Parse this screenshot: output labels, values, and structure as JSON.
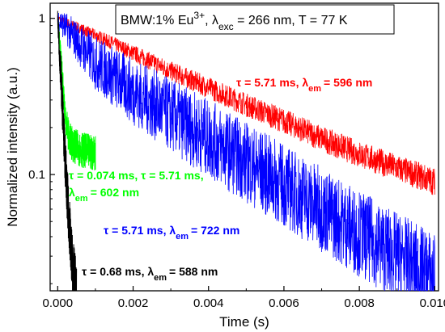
{
  "chart_data": {
    "type": "line",
    "title": "",
    "xlabel": "Time (s)",
    "ylabel": "Normalized intensity (a.u.)",
    "xlim": [
      -0.0002,
      0.0101
    ],
    "ylim": [
      0.018,
      1.25
    ],
    "yscale": "log",
    "grid": false,
    "x_ticks": [
      {
        "value": 0.0,
        "label": "0.000"
      },
      {
        "value": 0.002,
        "label": "0.002"
      },
      {
        "value": 0.004,
        "label": "0.004"
      },
      {
        "value": 0.006,
        "label": "0.006"
      },
      {
        "value": 0.008,
        "label": "0.008"
      },
      {
        "value": 0.01,
        "label": "0.010"
      }
    ],
    "y_ticks": [
      {
        "value": 1,
        "label": "1"
      },
      {
        "value": 0.1,
        "label": "0.1"
      }
    ],
    "legend": {
      "placement": "top-right",
      "prefix": "BMW:1% Eu",
      "superscript": "3+",
      "mid": ", λ",
      "subscript": "exc",
      "suffix": " = 266 nm, T = 77 K"
    },
    "series": [
      {
        "color": "#ff0000",
        "x": [
          0.0,
          0.001,
          0.002,
          0.003,
          0.004,
          0.005,
          0.006,
          0.007,
          0.008,
          0.009,
          0.01
        ],
        "y": [
          1.0,
          0.78,
          0.6,
          0.46,
          0.36,
          0.28,
          0.22,
          0.17,
          0.135,
          0.11,
          0.09
        ],
        "noise": 0.06,
        "annotation": {
          "tau": "τ = 5.71 ms, λ",
          "sub": "em",
          "rest": "= 596 nm"
        }
      },
      {
        "color": "#0000ff",
        "x": [
          0.0,
          0.001,
          0.002,
          0.003,
          0.004,
          0.005,
          0.006,
          0.007,
          0.008,
          0.009,
          0.01
        ],
        "y": [
          1.0,
          0.52,
          0.34,
          0.24,
          0.17,
          0.12,
          0.085,
          0.06,
          0.042,
          0.03,
          0.022
        ],
        "noise": 0.18,
        "annotation": {
          "tau": "τ = 5.71 ms, λ",
          "sub": "em",
          "rest": "= 722 nm"
        }
      },
      {
        "color": "#00ff00",
        "x": [
          0.0,
          0.0001,
          0.0002,
          0.0003,
          0.0004,
          0.0006,
          0.0008,
          0.001
        ],
        "y": [
          1.0,
          0.5,
          0.24,
          0.17,
          0.155,
          0.145,
          0.14,
          0.138
        ],
        "noise": 0.08,
        "annotation": {
          "tau": "τ = 0.074 ms, τ = 5.71 ms,",
          "line2": "λ",
          "sub": "em",
          "rest": "= 602 nm"
        }
      },
      {
        "color": "#000000",
        "x": [
          0.0,
          0.0001,
          0.0002,
          0.0003,
          0.0004,
          0.0005
        ],
        "y": [
          1.0,
          0.36,
          0.12,
          0.05,
          0.025,
          0.018
        ],
        "noise": 0.12,
        "annotation": {
          "tau": "τ = 0.68 ms, λ",
          "sub": "em",
          "rest": "= 588 nm"
        }
      }
    ]
  }
}
